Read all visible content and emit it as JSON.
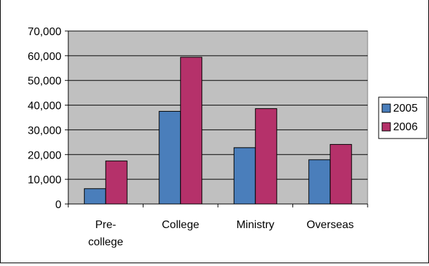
{
  "chart_data": {
    "type": "bar",
    "title": "",
    "xlabel": "",
    "ylabel": "",
    "categories": [
      [
        "Pre-",
        "college"
      ],
      [
        "College"
      ],
      [
        "Ministry"
      ],
      [
        "Overseas"
      ]
    ],
    "series": [
      {
        "name": "2005",
        "values": [
          6200,
          37500,
          22800,
          17900
        ],
        "color": "#4a7ebb"
      },
      {
        "name": "2006",
        "values": [
          17400,
          59400,
          38600,
          24100
        ],
        "color": "#b5316a"
      }
    ],
    "ylim": [
      0,
      70000
    ],
    "yticks": [
      0,
      10000,
      20000,
      30000,
      40000,
      50000,
      60000,
      70000
    ],
    "ytick_labels": [
      "0",
      "10,000",
      "20,000",
      "30,000",
      "40,000",
      "50,000",
      "60,000",
      "70,000"
    ],
    "grid": true,
    "plot_background": "#c0c0c0",
    "legend_position": "right"
  }
}
